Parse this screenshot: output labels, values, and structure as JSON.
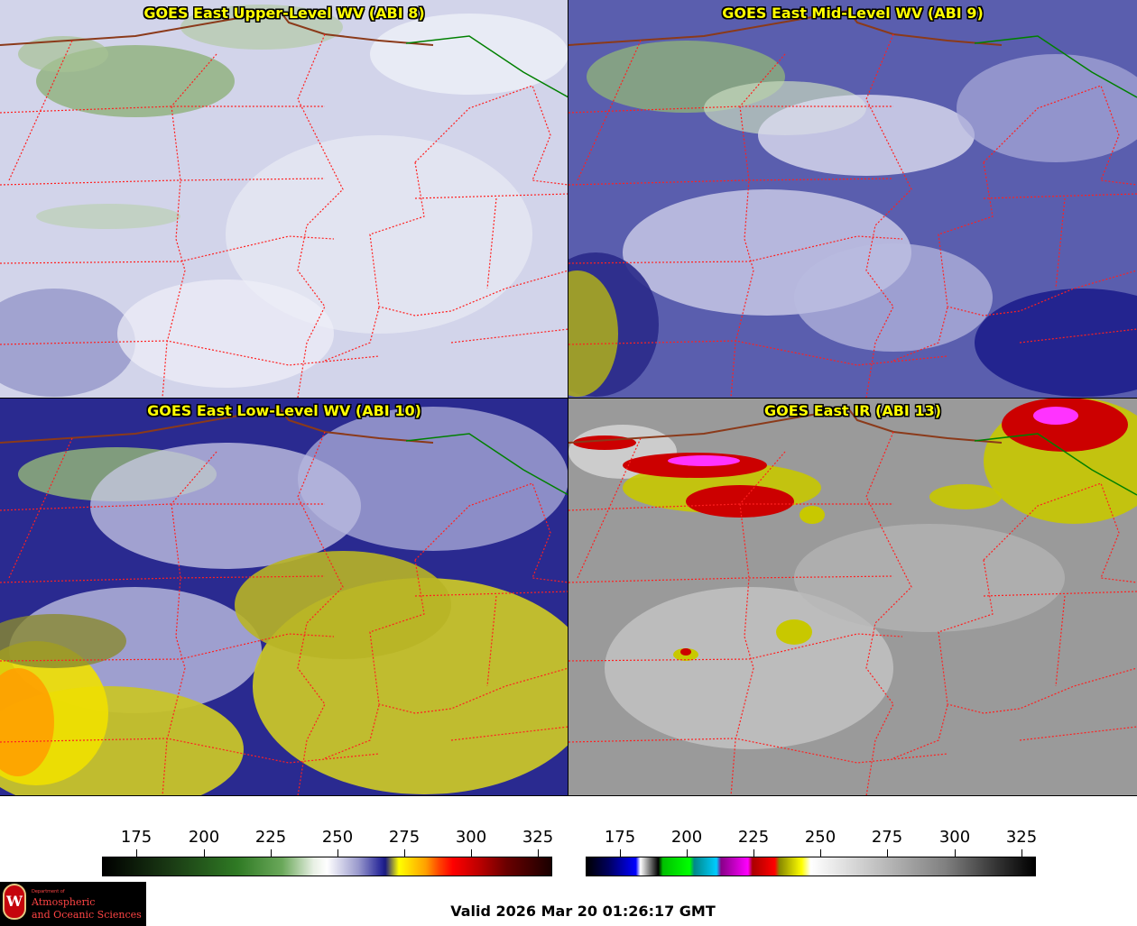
{
  "panels": {
    "upper": {
      "title": "GOES East Upper-Level WV (ABI 8)"
    },
    "mid": {
      "title": "GOES East Mid-Level WV (ABI 9)"
    },
    "low": {
      "title": "GOES East Low-Level WV (ABI 10)"
    },
    "ir": {
      "title": "GOES East IR (ABI 13)"
    }
  },
  "colorbars": {
    "wv": {
      "ticks": [
        "175",
        "200",
        "225",
        "250",
        "275",
        "300",
        "325"
      ]
    },
    "ir": {
      "ticks": [
        "175",
        "200",
        "225",
        "250",
        "275",
        "300",
        "325"
      ]
    }
  },
  "logo": {
    "seal_letter": "W",
    "dept": "Department of",
    "line1": "Atmospheric",
    "line2": "and Oceanic Sciences"
  },
  "valid_text": "Valid 2026 Mar 20 01:26:17 GMT",
  "colors": {
    "title_text": "#ffff00",
    "state_borders": "#ff2020",
    "country_border": "#8b3a1a",
    "canada_border": "#008000"
  }
}
